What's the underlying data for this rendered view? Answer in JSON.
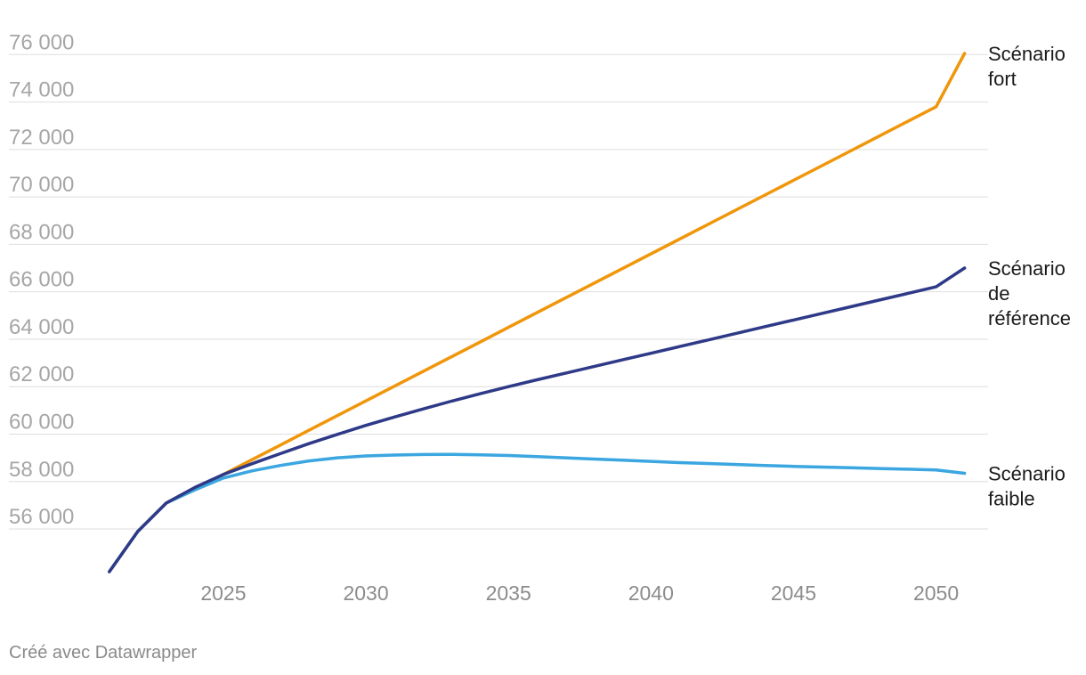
{
  "footer": {
    "credit": "Créé avec Datawrapper"
  },
  "chart_data": {
    "type": "line",
    "title": "",
    "xlabel": "",
    "ylabel": "",
    "x": [
      2021,
      2022,
      2023,
      2024,
      2025,
      2026,
      2027,
      2028,
      2029,
      2030,
      2031,
      2032,
      2033,
      2034,
      2035,
      2036,
      2037,
      2038,
      2039,
      2040,
      2041,
      2042,
      2043,
      2044,
      2045,
      2046,
      2047,
      2048,
      2049,
      2050,
      2051
    ],
    "xlim": [
      2020.6,
      2051.2
    ],
    "ylim": [
      53900,
      76800
    ],
    "xticks": [
      2025,
      2030,
      2035,
      2040,
      2045,
      2050
    ],
    "xtick_labels": [
      "2025",
      "2030",
      "2035",
      "2040",
      "2045",
      "2050"
    ],
    "yticks": [
      56000,
      58000,
      60000,
      62000,
      64000,
      66000,
      68000,
      70000,
      72000,
      74000,
      76000
    ],
    "ytick_labels": [
      "56 000",
      "58 000",
      "60 000",
      "62 000",
      "64 000",
      "66 000",
      "68 000",
      "70 000",
      "72 000",
      "74 000",
      "76 000"
    ],
    "grid": true,
    "legend": "direct-labels-right",
    "series": [
      {
        "name": "Scénario fort",
        "label_lines": [
          "Scénario",
          "fort"
        ],
        "color": "#f0960a",
        "values": [
          54200,
          55900,
          57100,
          57700,
          58300,
          58920,
          59540,
          60160,
          60780,
          61400,
          62020,
          62640,
          63260,
          63880,
          64500,
          65120,
          65740,
          66360,
          66980,
          67600,
          68220,
          68840,
          69460,
          70080,
          70700,
          71320,
          71940,
          72560,
          73180,
          73800,
          76050
        ]
      },
      {
        "name": "Scénario de référence",
        "label_lines": [
          "Scénario",
          "de",
          "référence"
        ],
        "color": "#2e3a87",
        "values": [
          54200,
          55900,
          57100,
          57750,
          58300,
          58750,
          59180,
          59600,
          59990,
          60370,
          60720,
          61060,
          61390,
          61700,
          62000,
          62290,
          62570,
          62850,
          63130,
          63410,
          63690,
          63970,
          64250,
          64530,
          64810,
          65090,
          65370,
          65650,
          65930,
          66210,
          67000
        ]
      },
      {
        "name": "Scénario faible",
        "label_lines": [
          "Scénario",
          "faible"
        ],
        "color": "#3ba6e0",
        "values": [
          54200,
          55900,
          57100,
          57650,
          58150,
          58450,
          58680,
          58870,
          59000,
          59080,
          59120,
          59140,
          59150,
          59130,
          59100,
          59050,
          59000,
          58950,
          58900,
          58850,
          58800,
          58760,
          58720,
          58680,
          58640,
          58610,
          58580,
          58550,
          58520,
          58490,
          58350
        ]
      }
    ]
  }
}
